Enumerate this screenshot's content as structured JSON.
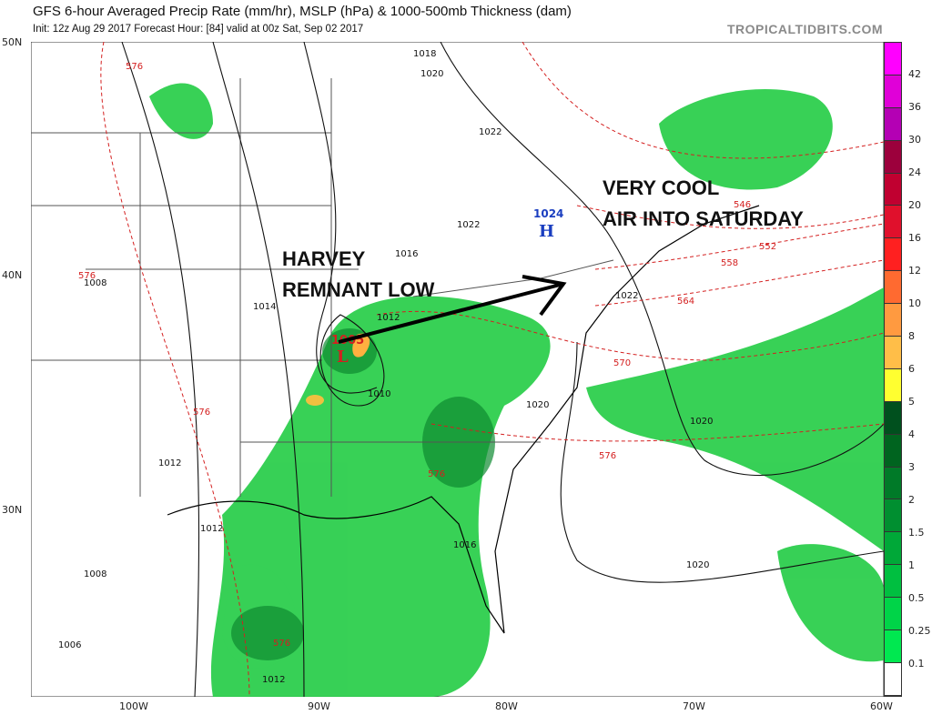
{
  "header": {
    "title": "GFS 6-hour Averaged Precip Rate (mm/hr), MSLP (hPa) & 1000-500mb Thickness (dam)",
    "subtitle": "Init: 12z Aug 29 2017   Forecast Hour: [84]   valid at 00z Sat, Sep 02 2017",
    "brand": "TROPICALTIDBITS.COM"
  },
  "axes": {
    "lat": [
      "50N",
      "40N",
      "30N"
    ],
    "lon": [
      "100W",
      "90W",
      "80W",
      "70W",
      "60W"
    ]
  },
  "colorbar": {
    "labels": [
      "42",
      "36",
      "30",
      "24",
      "20",
      "16",
      "12",
      "10",
      "8",
      "6",
      "5",
      "4",
      "3",
      "2",
      "1.5",
      "1",
      "0.5",
      "0.25",
      "0.1"
    ],
    "colors": [
      "#ff00ff",
      "#e000d8",
      "#b400b4",
      "#9c003c",
      "#c00030",
      "#e0102c",
      "#ff2020",
      "#ff6a30",
      "#ff9a40",
      "#ffbe48",
      "#ffff30",
      "#00501e",
      "#00641f",
      "#007a28",
      "#008f30",
      "#00a838",
      "#00bf40",
      "#00d448",
      "#00e850",
      "#ffffff"
    ]
  },
  "annotations": {
    "harvey_line1": "HARVEY",
    "harvey_line2": "REMNANT LOW",
    "cool_line1": "VERY COOL",
    "cool_line2": "AIR INTO SATURDAY"
  },
  "pressure_centers": {
    "low_symbol": "L",
    "low_value": "1005",
    "high_symbol": "H",
    "high_value": "1024"
  },
  "isobar_labels": [
    "1018",
    "1020",
    "1022",
    "1022",
    "1016",
    "1014",
    "1012",
    "1012",
    "1010",
    "1008",
    "1008",
    "1006",
    "1012",
    "1012",
    "1020",
    "1020",
    "1020",
    "1016",
    "1022"
  ],
  "thickness_labels": [
    "576",
    "576",
    "546",
    "552",
    "558",
    "564",
    "570",
    "576",
    "576",
    "576",
    "576"
  ],
  "colors": {
    "thickness": "#d42020",
    "isobar": "#111111",
    "precip": "#22cc44",
    "accent_arrow": "#000000"
  }
}
